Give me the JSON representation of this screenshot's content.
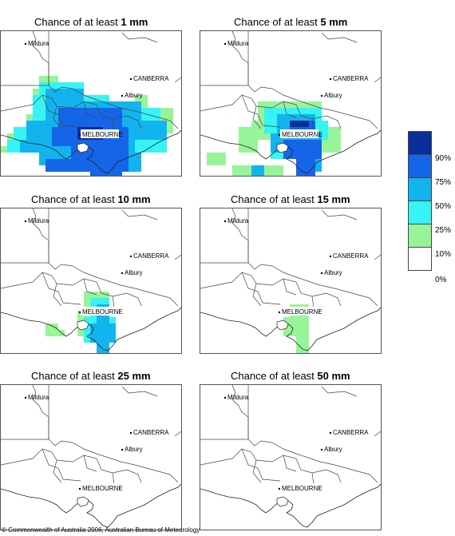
{
  "panels": [
    {
      "prefix": "Chance of at least ",
      "amount": "1 mm",
      "cities": [
        "Mildura",
        "CANBERRA",
        "Albury",
        "MELBOURNE"
      ]
    },
    {
      "prefix": "Chance of at least ",
      "amount": "5 mm",
      "cities": [
        "Mildura",
        "CANBERRA",
        "Albury",
        "MELBOURNE"
      ]
    },
    {
      "prefix": "Chance of at least ",
      "amount": "10 mm",
      "cities": [
        "Mildura",
        "CANBERRA",
        "Albury",
        "MELBOURNE"
      ]
    },
    {
      "prefix": "Chance of at least ",
      "amount": "15 mm",
      "cities": [
        "Mildura",
        "CANBERRA",
        "Albury",
        "MELBOURNE"
      ]
    },
    {
      "prefix": "Chance of at least ",
      "amount": "25 mm",
      "cities": [
        "Mildura",
        "CANBERRA",
        "Albury",
        "MELBOURNE"
      ]
    },
    {
      "prefix": "Chance of at least ",
      "amount": "50 mm",
      "cities": [
        "Mildura",
        "CANBERRA",
        "Albury",
        "MELBOURNE"
      ]
    }
  ],
  "legend": {
    "labels": [
      "90%",
      "75%",
      "50%",
      "25%",
      "10%",
      "0%"
    ],
    "colors": [
      "#0a2f9a",
      "#1565e8",
      "#12b4ee",
      "#36f4f4",
      "#98f498",
      "#ffffff"
    ]
  },
  "footer": "© Commonwealth of Australia 2006, Australian Bureau of Meteorology"
}
